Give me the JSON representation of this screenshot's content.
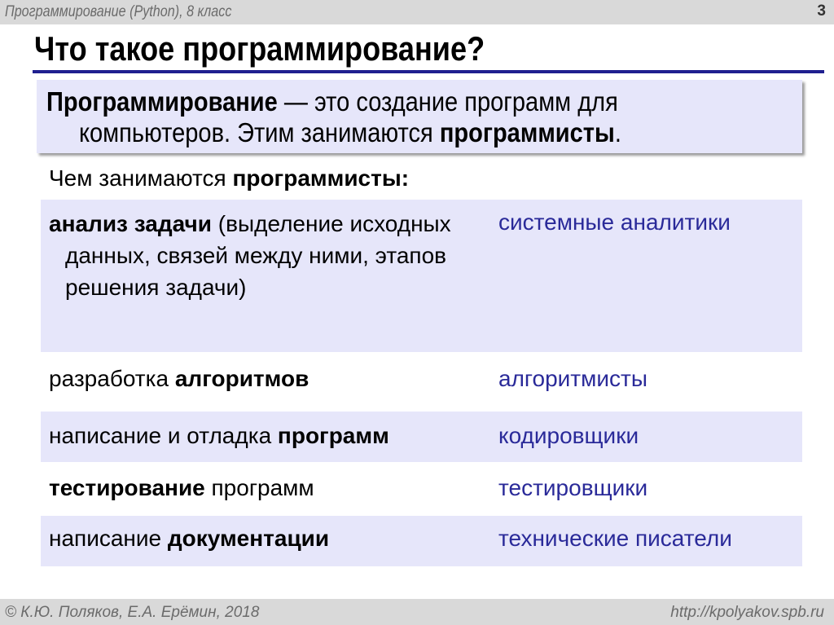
{
  "header": {
    "course": "Программирование (Python), 8 класс",
    "page_number": "3"
  },
  "title": "Что такое программирование?",
  "definition": {
    "term": "Программирование",
    "text1": " — это создание программ для",
    "text2": "компьютеров. Этим занимаются ",
    "term2": "программисты",
    "end": "."
  },
  "subtitle": {
    "text": "Чем занимаются ",
    "bold": "программисты:"
  },
  "rows": [
    {
      "bold": "анализ задачи",
      "text": " (выделение исходных данных, связей между ними, этапов решения задачи)",
      "role": "системные аналитики"
    },
    {
      "text": "разработка ",
      "bold": "алгоритмов",
      "role": "алгоритмисты"
    },
    {
      "text": "написание и отладка ",
      "bold": "программ",
      "role": "кодировщики"
    },
    {
      "bold": "тестирование",
      "text": " программ",
      "role": "тестировщики"
    },
    {
      "text": "написание ",
      "bold": "документации",
      "role": "технические писатели"
    }
  ],
  "footer": {
    "copyright": "© К.Ю. Поляков, Е.А. Ерёмин, 2018",
    "url": "http://kpolyakov.spb.ru"
  },
  "colors": {
    "accent": "#1f1f8f",
    "box": "#e6e6fa",
    "role_text": "#2a2a99",
    "bars": "#d9d9d9"
  }
}
